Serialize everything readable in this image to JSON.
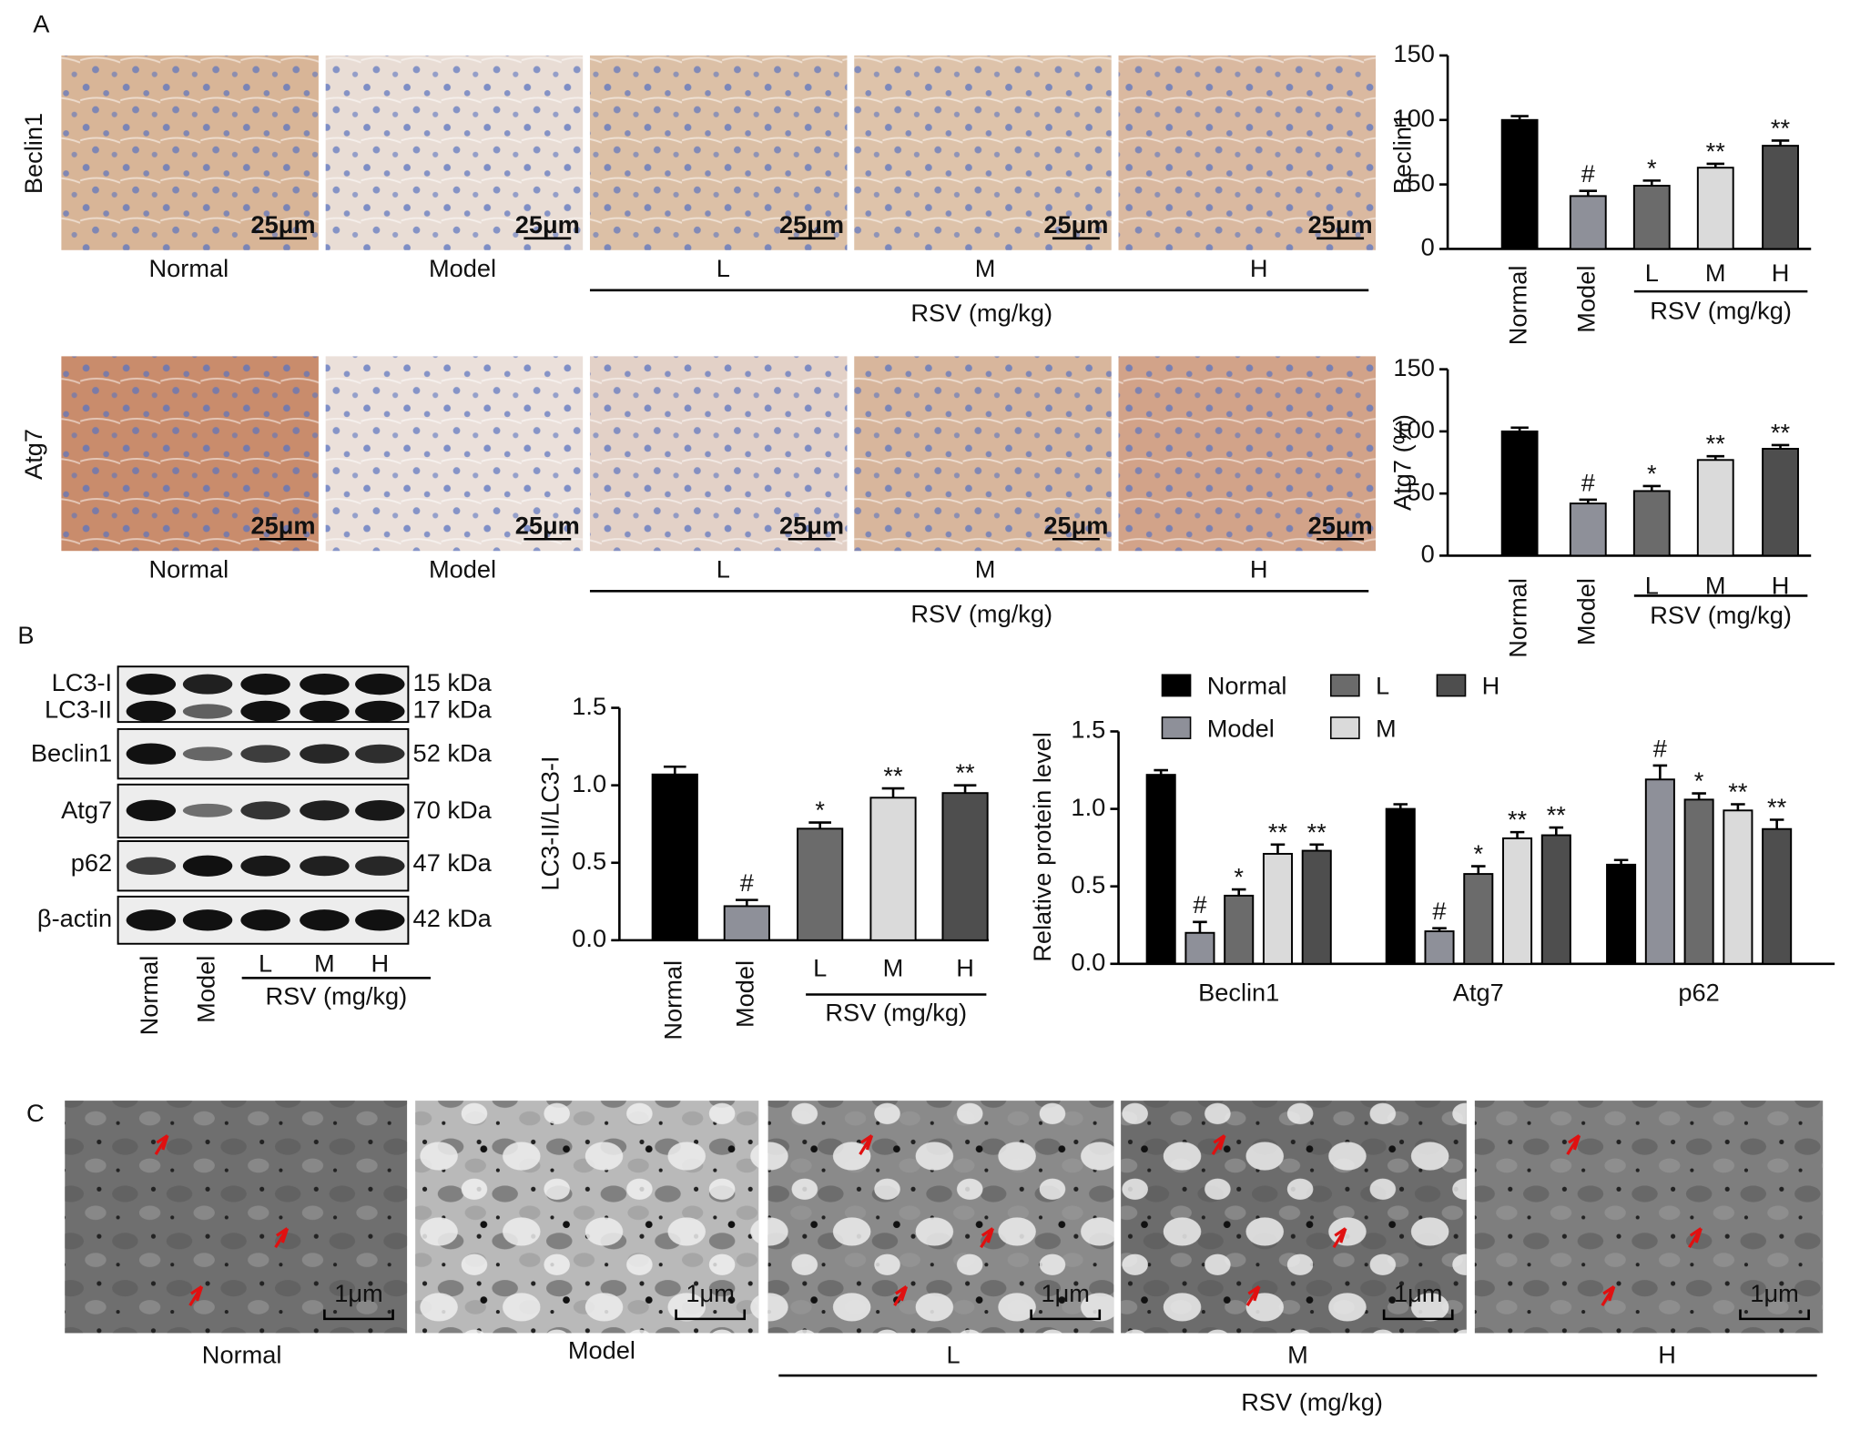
{
  "figure": {
    "panel_labels": [
      "A",
      "B",
      "C"
    ],
    "ihc": {
      "rows": [
        "Beclin1",
        "Atg7"
      ],
      "columns": [
        "Normal",
        "Model",
        "L",
        "M",
        "H"
      ],
      "group": "RSV (mg/kg)",
      "scale": "25μm"
    },
    "blot": {
      "bands": [
        "LC3-I",
        "LC3-II",
        "Beclin1",
        "Atg7",
        "p62",
        "β-actin"
      ],
      "sizes": [
        "15 kDa",
        "17 kDa",
        "52 kDa",
        "70 kDa",
        "47 kDa",
        "42 kDa"
      ],
      "lanes": [
        "Normal",
        "Model",
        "L",
        "M",
        "H"
      ],
      "group": "RSV (mg/kg)"
    },
    "em": {
      "columns": [
        "Normal",
        "Model",
        "L",
        "M",
        "H"
      ],
      "group": "RSV (mg/kg)",
      "scale": "1μm"
    }
  },
  "chart_data": [
    {
      "type": "bar",
      "ylabel": "Beclin1",
      "categories": [
        "Normal",
        "Model",
        "L",
        "M",
        "H"
      ],
      "group_label": "RSV (mg/kg)",
      "values": [
        100,
        41,
        49,
        63,
        80
      ],
      "errors": [
        3,
        4,
        4,
        3,
        4
      ],
      "annotations": [
        null,
        "#",
        "*",
        "**",
        "**"
      ],
      "colors": [
        "#000000",
        "#8e9099",
        "#6b6b6b",
        "#dadada",
        "#4e4e4e"
      ],
      "ylim": [
        0,
        150
      ],
      "yticks": [
        0,
        50,
        100,
        150
      ]
    },
    {
      "type": "bar",
      "ylabel": "Atg7 (%)",
      "categories": [
        "Normal",
        "Model",
        "L",
        "M",
        "H"
      ],
      "group_label": "RSV (mg/kg)",
      "values": [
        100,
        42,
        52,
        77,
        86
      ],
      "errors": [
        3,
        3,
        4,
        3,
        3
      ],
      "annotations": [
        null,
        "#",
        "*",
        "**",
        "**"
      ],
      "colors": [
        "#000000",
        "#8e9099",
        "#6b6b6b",
        "#dadada",
        "#4e4e4e"
      ],
      "ylim": [
        0,
        150
      ],
      "yticks": [
        0,
        50,
        100,
        150
      ]
    },
    {
      "type": "bar",
      "ylabel": "LC3-II/LC3-I",
      "categories": [
        "Normal",
        "Model",
        "L",
        "M",
        "H"
      ],
      "group_label": "RSV (mg/kg)",
      "values": [
        1.07,
        0.22,
        0.72,
        0.92,
        0.95
      ],
      "errors": [
        0.05,
        0.04,
        0.04,
        0.06,
        0.05
      ],
      "annotations": [
        null,
        "#",
        "*",
        "**",
        "**"
      ],
      "colors": [
        "#000000",
        "#8e9099",
        "#6b6b6b",
        "#dadada",
        "#4e4e4e"
      ],
      "ylim": [
        0,
        1.5
      ],
      "yticks": [
        {
          "value": 0,
          "label": "0.0"
        },
        0.5,
        {
          "value": 1,
          "label": "1.0"
        },
        1.5
      ]
    },
    {
      "type": "bar",
      "ylabel": "Relative protein level",
      "categories": [
        "Beclin1",
        "Atg7",
        "p62"
      ],
      "series": [
        {
          "name": "Normal",
          "color": "#000000",
          "values": [
            1.22,
            1.0,
            0.64
          ],
          "errors": [
            0.03,
            0.03,
            0.03
          ],
          "annotations": [
            null,
            null,
            null
          ]
        },
        {
          "name": "Model",
          "color": "#8e9099",
          "values": [
            0.2,
            0.21,
            1.19
          ],
          "errors": [
            0.07,
            0.02,
            0.09
          ],
          "annotations": [
            "#",
            "#",
            "#"
          ]
        },
        {
          "name": "L",
          "color": "#6b6b6b",
          "values": [
            0.44,
            0.58,
            1.06
          ],
          "errors": [
            0.04,
            0.05,
            0.04
          ],
          "annotations": [
            "*",
            "*",
            "*"
          ]
        },
        {
          "name": "M",
          "color": "#dadada",
          "values": [
            0.71,
            0.81,
            0.99
          ],
          "errors": [
            0.06,
            0.04,
            0.04
          ],
          "annotations": [
            "**",
            "**",
            "**"
          ]
        },
        {
          "name": "H",
          "color": "#4e4e4e",
          "values": [
            0.73,
            0.83,
            0.87
          ],
          "errors": [
            0.04,
            0.05,
            0.06
          ],
          "annotations": [
            "**",
            "**",
            "**"
          ]
        }
      ],
      "ylim": [
        0,
        1.5
      ],
      "yticks": [
        {
          "value": 0,
          "label": "0.0"
        },
        0.5,
        {
          "value": 1,
          "label": "1.0"
        },
        1.5
      ]
    }
  ]
}
